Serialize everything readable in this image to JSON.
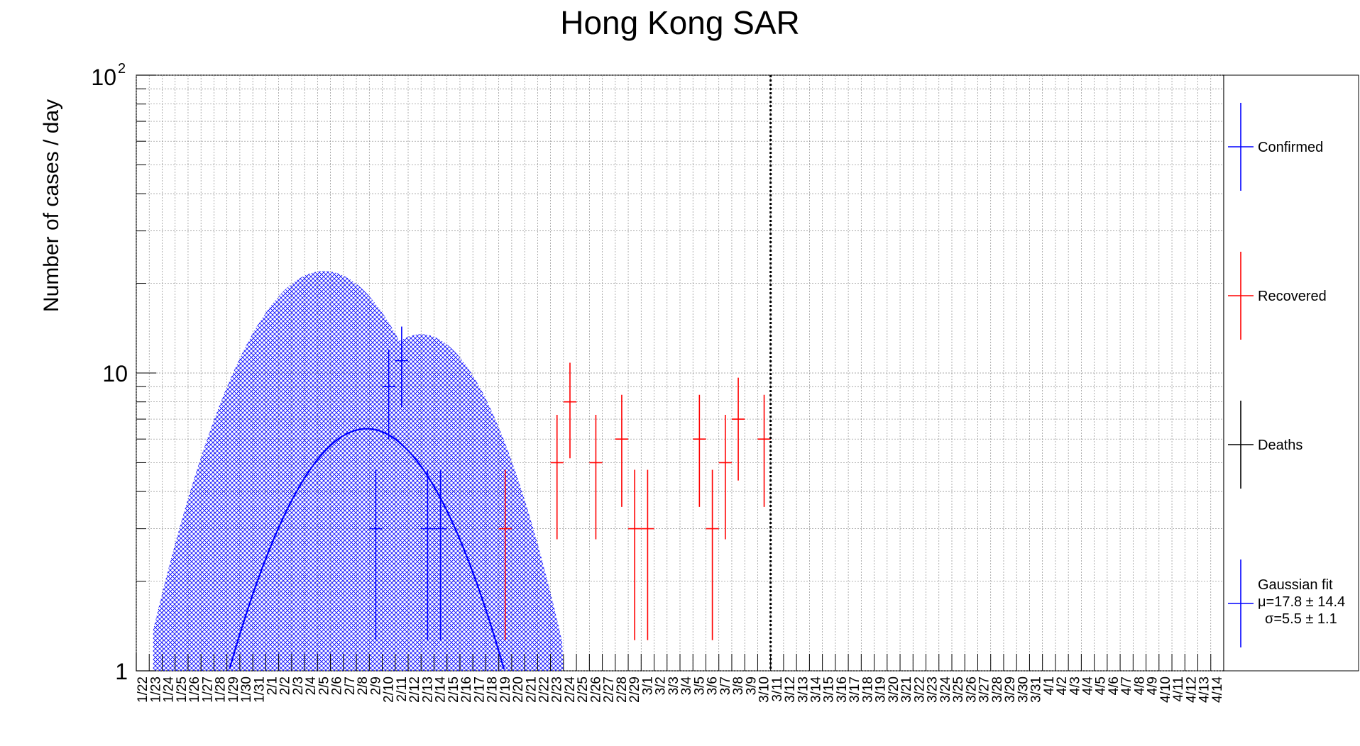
{
  "chart_data": {
    "type": "scatter",
    "title": "Hong Kong SAR",
    "ylabel": "Number of cases / day",
    "xlabel": "",
    "y_scale": "log",
    "ylim": [
      1,
      100
    ],
    "y_tick_labels": {
      "major_1": "1",
      "major_10": "10",
      "major_100_base": "10",
      "major_100_exp": "2"
    },
    "grid": true,
    "legend_position": "right",
    "categories": [
      "1/22",
      "1/23",
      "1/24",
      "1/25",
      "1/26",
      "1/27",
      "1/28",
      "1/29",
      "1/30",
      "1/31",
      "2/1",
      "2/2",
      "2/3",
      "2/4",
      "2/5",
      "2/6",
      "2/7",
      "2/8",
      "2/9",
      "2/10",
      "2/11",
      "2/12",
      "2/13",
      "2/14",
      "2/15",
      "2/16",
      "2/17",
      "2/18",
      "2/19",
      "2/20",
      "2/21",
      "2/22",
      "2/23",
      "2/24",
      "2/25",
      "2/26",
      "2/27",
      "2/28",
      "2/29",
      "3/1",
      "3/2",
      "3/3",
      "3/4",
      "3/5",
      "3/6",
      "3/7",
      "3/8",
      "3/9",
      "3/10",
      "3/11",
      "3/12",
      "3/13",
      "3/14",
      "3/15",
      "3/16",
      "3/17",
      "3/18",
      "3/19",
      "3/20",
      "3/21",
      "3/22",
      "3/23",
      "3/24",
      "3/25",
      "3/26",
      "3/27",
      "3/28",
      "3/29",
      "3/30",
      "3/31",
      "4/1",
      "4/2",
      "4/3",
      "4/4",
      "4/5",
      "4/6",
      "4/7",
      "4/8",
      "4/9",
      "4/10",
      "4/11",
      "4/12",
      "4/13",
      "4/14"
    ],
    "marker_date": "3/10",
    "series": [
      {
        "name": "Confirmed",
        "color": "#0000ff",
        "points": [
          {
            "x": "2/9",
            "y": 3
          },
          {
            "x": "2/10",
            "y": 9
          },
          {
            "x": "2/11",
            "y": 11
          },
          {
            "x": "2/13",
            "y": 3
          },
          {
            "x": "2/14",
            "y": 3
          }
        ]
      },
      {
        "name": "Recovered",
        "color": "#ff0000",
        "points": [
          {
            "x": "2/19",
            "y": 3
          },
          {
            "x": "2/23",
            "y": 5
          },
          {
            "x": "2/24",
            "y": 8
          },
          {
            "x": "2/26",
            "y": 5
          },
          {
            "x": "2/28",
            "y": 6
          },
          {
            "x": "2/29",
            "y": 3
          },
          {
            "x": "3/1",
            "y": 3
          },
          {
            "x": "3/5",
            "y": 6
          },
          {
            "x": "3/6",
            "y": 3
          },
          {
            "x": "3/7",
            "y": 5
          },
          {
            "x": "3/8",
            "y": 7
          },
          {
            "x": "3/10",
            "y": 6
          }
        ]
      },
      {
        "name": "Deaths",
        "color": "#000000",
        "points": []
      }
    ],
    "fit": {
      "mu": 17.8,
      "sigma": 5.5,
      "amplitude": 6.5
    },
    "legend": [
      {
        "key": "confirmed",
        "label": "Confirmed",
        "color": "#0000ff"
      },
      {
        "key": "recovered",
        "label": "Recovered",
        "color": "#ff0000"
      },
      {
        "key": "deaths",
        "label": "Deaths",
        "color": "#000000"
      },
      {
        "key": "fit",
        "label": "Gaussian fit",
        "line2": "μ=17.8 ± 14.4",
        "line3": "σ=5.5 ± 1.1",
        "color": "#0000ff"
      }
    ]
  }
}
